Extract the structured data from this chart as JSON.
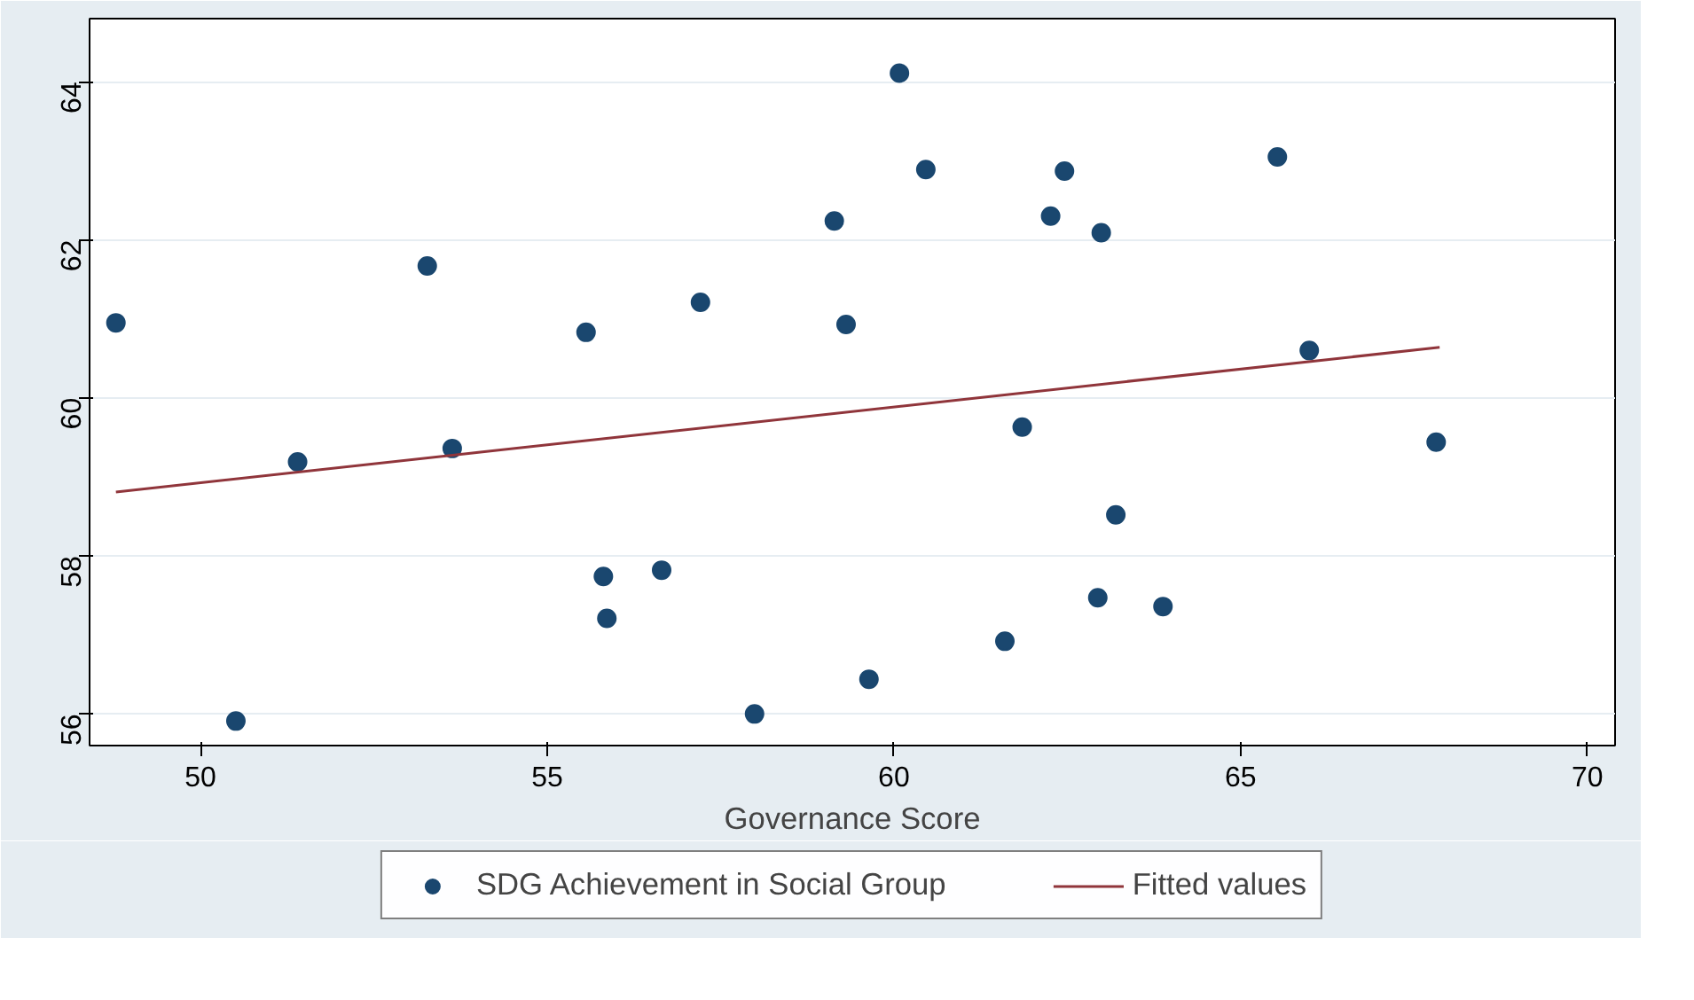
{
  "chart_data": {
    "type": "scatter",
    "xlabel": "Governance Score",
    "xlim": [
      48.4,
      70.4
    ],
    "ylim": [
      55.6,
      64.8
    ],
    "xticks": [
      50,
      55,
      60,
      65,
      70
    ],
    "yticks": [
      56,
      58,
      60,
      62,
      64
    ],
    "grid": "y",
    "legend": "bottom",
    "series": [
      {
        "name": "SDG Achievement in Social Group",
        "marker": "circle",
        "color": "#1a476f",
        "x": [
          48.78,
          50.51,
          51.4,
          53.27,
          53.63,
          55.56,
          55.81,
          55.86,
          56.65,
          57.21,
          57.99,
          59.14,
          59.31,
          59.64,
          60.08,
          60.46,
          61.6,
          61.85,
          62.26,
          62.46,
          62.94,
          62.99,
          63.2,
          63.88,
          65.53,
          65.99,
          67.82
        ],
        "values": [
          60.95,
          55.91,
          59.19,
          61.67,
          59.36,
          60.83,
          57.74,
          57.21,
          57.82,
          61.21,
          56.0,
          62.24,
          60.93,
          56.44,
          64.11,
          62.89,
          56.92,
          59.63,
          62.3,
          62.87,
          57.47,
          62.09,
          58.52,
          57.36,
          63.05,
          60.6,
          59.44
        ]
      },
      {
        "name": "Fitted values",
        "type": "line",
        "marker": "none",
        "line_style": "solid",
        "color": "#90353b",
        "x": [
          48.78,
          67.87
        ],
        "values": [
          58.81,
          60.64
        ]
      }
    ]
  }
}
